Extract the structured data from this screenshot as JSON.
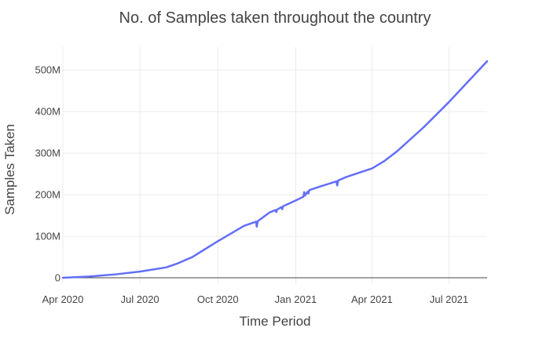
{
  "chart_data": {
    "type": "line",
    "title": "No. of Samples taken throughout the country",
    "xlabel": "Time Period",
    "ylabel": "Samples Taken",
    "x_tick_labels": [
      "Apr 2020",
      "Jul 2020",
      "Oct 2020",
      "Jan 2021",
      "Apr 2021",
      "Jul 2021"
    ],
    "x_ticks": [
      "2020-04-01",
      "2020-07-01",
      "2020-10-01",
      "2021-01-01",
      "2021-04-01",
      "2021-07-01"
    ],
    "y_tick_labels": [
      "0",
      "100M",
      "200M",
      "300M",
      "400M",
      "500M"
    ],
    "y_ticks": [
      0,
      100000000,
      200000000,
      300000000,
      400000000,
      500000000
    ],
    "xlim": [
      "2020-04-01",
      "2021-08-15"
    ],
    "ylim": [
      -15000000,
      555000000
    ],
    "grid": true,
    "legend": "none",
    "line_color": "#636efa",
    "series": [
      {
        "x": [
          "2020-04-01",
          "2020-05-01",
          "2020-06-01",
          "2020-07-01",
          "2020-08-01",
          "2020-08-15",
          "2020-09-01",
          "2020-10-01",
          "2020-11-01",
          "2020-11-15",
          "2020-11-16",
          "2020-11-17",
          "2020-12-01",
          "2020-12-08",
          "2020-12-09",
          "2020-12-10",
          "2020-12-15",
          "2020-12-16",
          "2020-12-17",
          "2021-01-01",
          "2021-01-10",
          "2021-01-11",
          "2021-01-12",
          "2021-01-15",
          "2021-01-16",
          "2021-01-17",
          "2021-02-01",
          "2021-02-18",
          "2021-02-19",
          "2021-02-20",
          "2021-03-01",
          "2021-04-01",
          "2021-04-15",
          "2021-05-01",
          "2021-06-01",
          "2021-07-01",
          "2021-08-15"
        ],
        "values": [
          0,
          3000000,
          8000000,
          15000000,
          25000000,
          35000000,
          50000000,
          88000000,
          125000000,
          135000000,
          123000000,
          136000000,
          157000000,
          163000000,
          158000000,
          164000000,
          170000000,
          165000000,
          172000000,
          186000000,
          195000000,
          206000000,
          198000000,
          207000000,
          203000000,
          211000000,
          221000000,
          232000000,
          222000000,
          234000000,
          242000000,
          263000000,
          280000000,
          305000000,
          362000000,
          423000000,
          521000000
        ]
      }
    ]
  }
}
